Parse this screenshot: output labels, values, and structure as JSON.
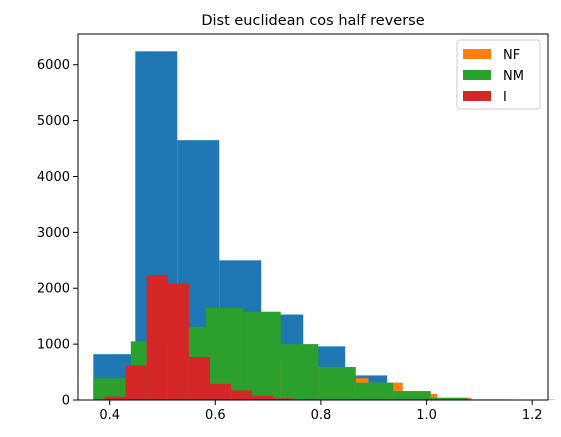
{
  "chart_data": {
    "type": "bar",
    "title": "Dist euclidean cos half reverse",
    "xlabel": "",
    "ylabel": "",
    "xlim": [
      0.34,
      1.23
    ],
    "ylim": [
      0,
      6550
    ],
    "xticks": [
      0.4,
      0.6,
      0.8,
      1.0,
      1.2
    ],
    "xtick_labels": [
      "0.4",
      "0.6",
      "0.8",
      "1.0",
      "1.2"
    ],
    "yticks": [
      0,
      1000,
      2000,
      3000,
      4000,
      5000,
      6000
    ],
    "ytick_labels": [
      "0",
      "1000",
      "2000",
      "3000",
      "4000",
      "5000",
      "6000"
    ],
    "legend_position": "top-right",
    "grid": false,
    "series": [
      {
        "color": "#1f77b4",
        "in_legend": false,
        "bins": [
          0.369,
          0.4485,
          0.528,
          0.6075,
          0.687,
          0.7665,
          0.846,
          0.9255,
          1.005,
          1.0845,
          1.164,
          1.2435
        ],
        "counts": [
          820,
          6240,
          4650,
          2500,
          1530,
          960,
          440,
          130,
          20,
          10,
          5
        ]
      },
      {
        "name": "NF",
        "color": "#ff7f0e",
        "in_legend": true,
        "bins": [
          0.695,
          0.76,
          0.825,
          0.89,
          0.955,
          1.02,
          1.085,
          1.15
        ],
        "counts": [
          730,
          590,
          390,
          310,
          110,
          40,
          10
        ]
      },
      {
        "name": "NM",
        "color": "#2ca02c",
        "in_legend": true,
        "bins": [
          0.369,
          0.44,
          0.511,
          0.582,
          0.653,
          0.724,
          0.795,
          0.866,
          0.937,
          1.008,
          1.079
        ],
        "counts": [
          390,
          1050,
          1310,
          1650,
          1580,
          1000,
          590,
          310,
          160,
          40
        ]
      },
      {
        "name": "I",
        "color": "#d62728",
        "in_legend": true,
        "bins": [
          0.39,
          0.43,
          0.47,
          0.51,
          0.55,
          0.59,
          0.63,
          0.67,
          0.71,
          0.75,
          0.79,
          0.83
        ],
        "counts": [
          60,
          620,
          2230,
          2080,
          770,
          290,
          170,
          80,
          30,
          10,
          5
        ]
      }
    ]
  }
}
